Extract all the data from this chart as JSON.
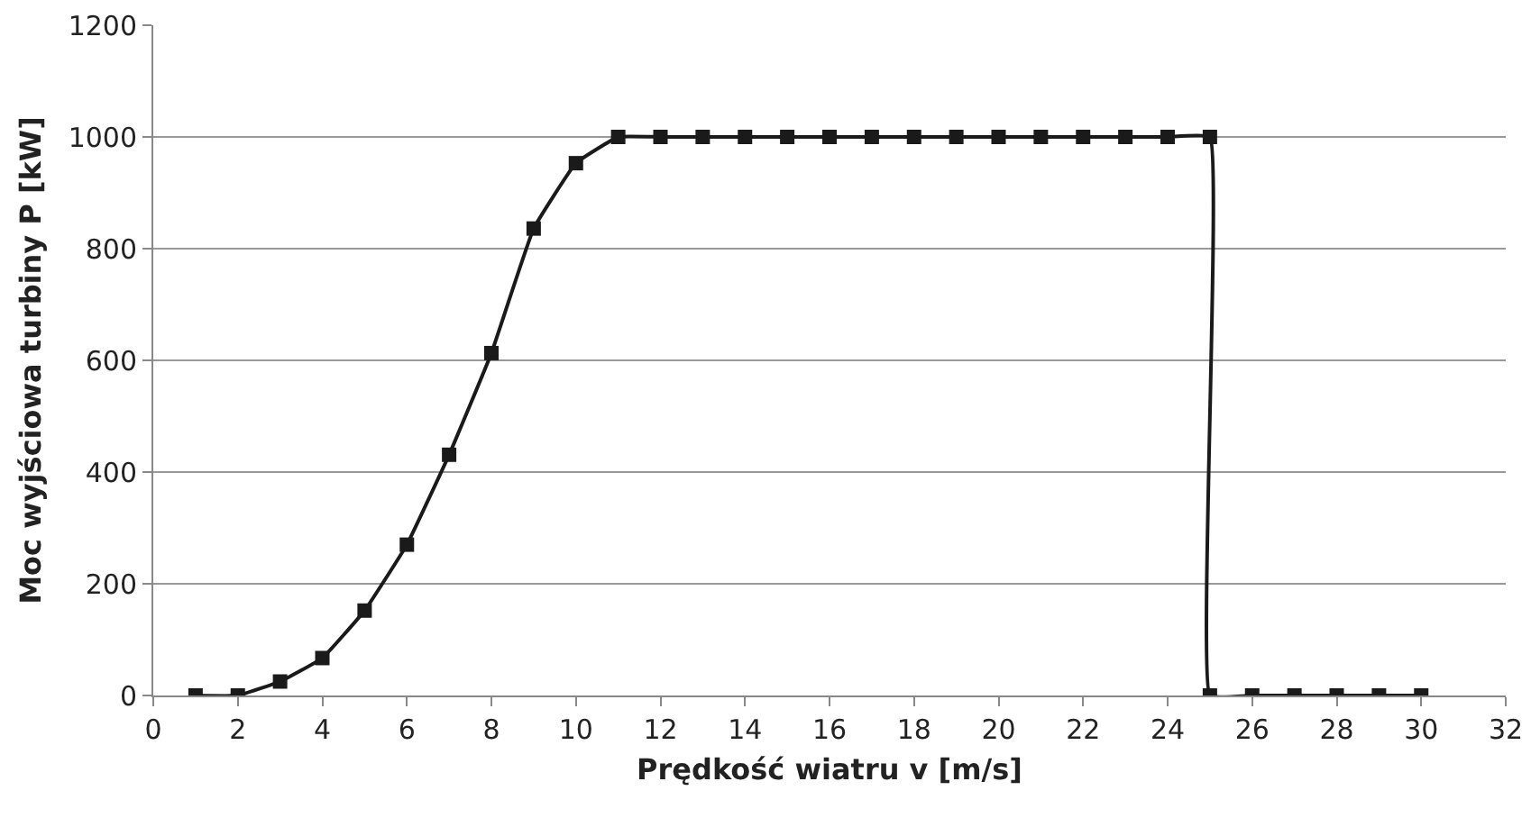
{
  "chart_data": {
    "type": "line",
    "xlabel": "Prędkość wiatru v [m/s]",
    "ylabel": "Moc wyjściowa turbiny P [kW]",
    "x": [
      1,
      2,
      3,
      4,
      5,
      6,
      7,
      8,
      9,
      10,
      11,
      12,
      13,
      14,
      15,
      16,
      17,
      18,
      19,
      20,
      21,
      22,
      23,
      24,
      25,
      25,
      26,
      27,
      28,
      29,
      30
    ],
    "series": [
      {
        "color": "#1a1a1a",
        "values": [
          0,
          0,
          25,
          67,
          152,
          270,
          431,
          613,
          836,
          953,
          1000,
          1000,
          1000,
          1000,
          1000,
          1000,
          1000,
          1000,
          1000,
          1000,
          1000,
          1000,
          1000,
          1000,
          1000,
          0,
          0,
          0,
          0,
          0,
          0
        ]
      }
    ],
    "xlim": [
      0,
      32
    ],
    "xticks": [
      0,
      2,
      4,
      6,
      8,
      10,
      12,
      14,
      16,
      18,
      20,
      22,
      24,
      26,
      28,
      30,
      32
    ],
    "ylim": [
      0,
      1200
    ],
    "yticks": [
      0,
      200,
      400,
      600,
      800,
      1000,
      1200
    ],
    "grid": "y",
    "marker": "square",
    "line_style": "solid"
  }
}
